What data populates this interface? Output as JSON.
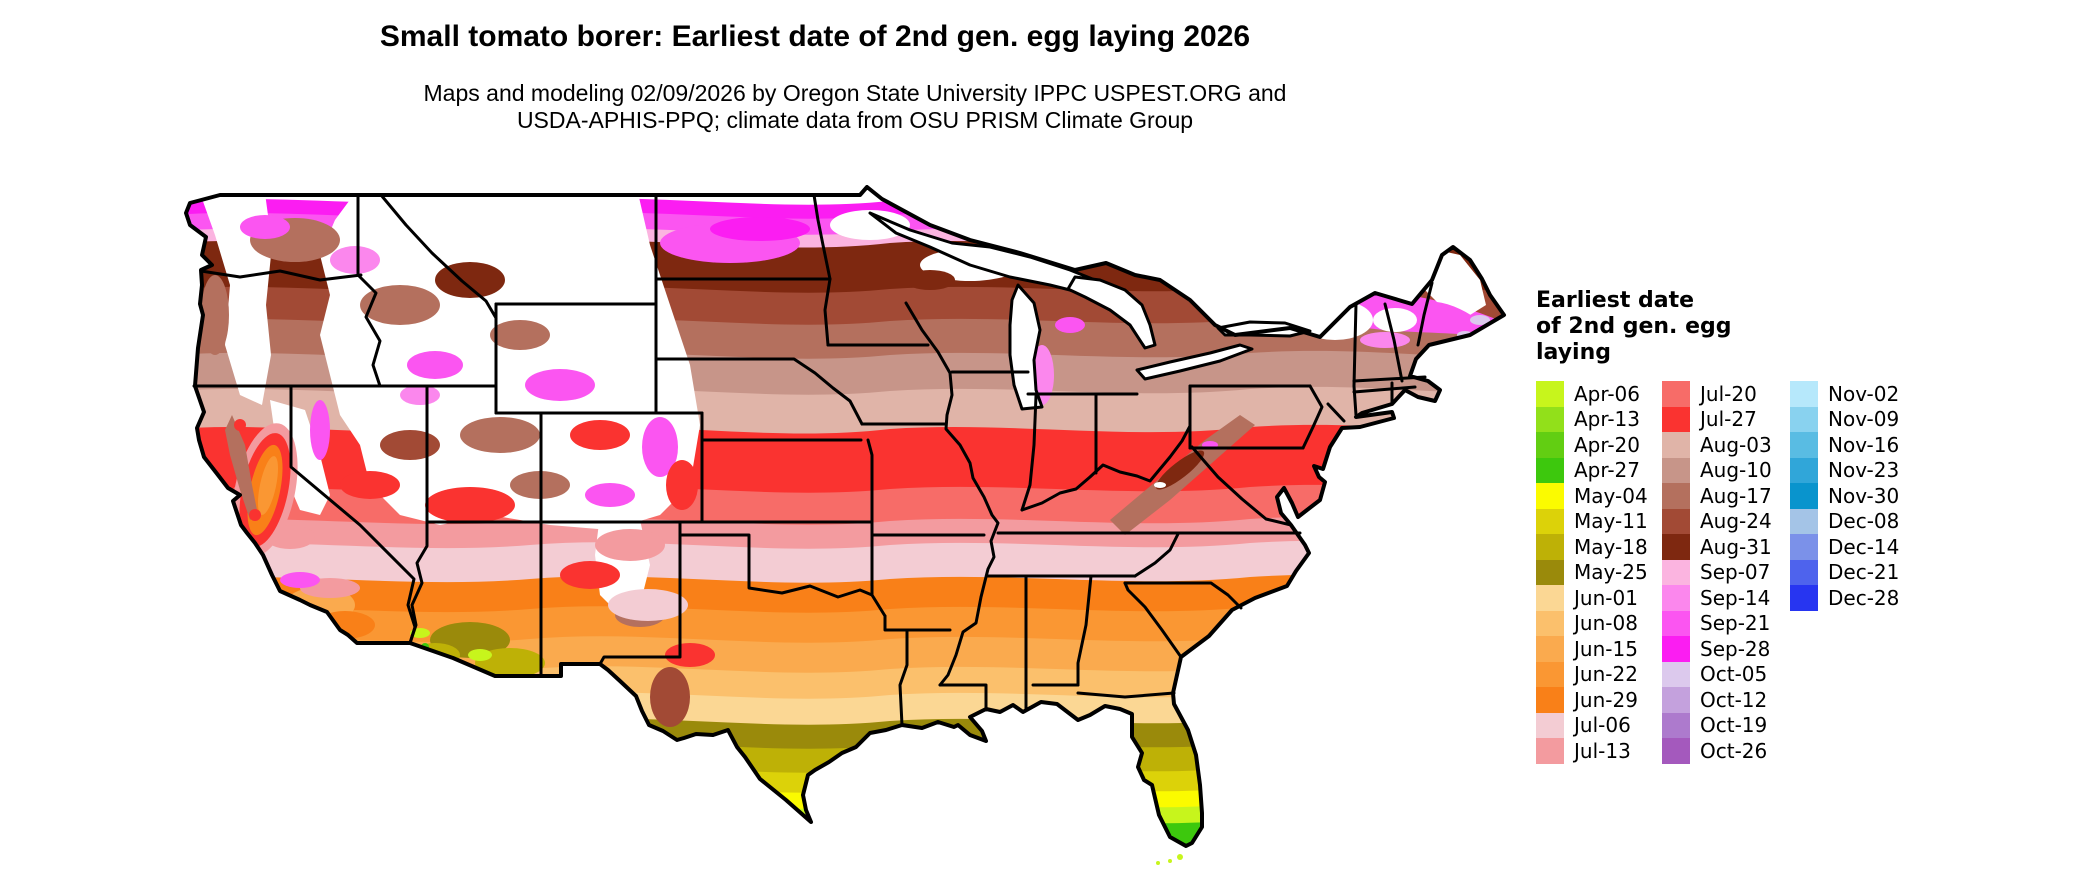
{
  "header": {
    "title": "Small tomato borer: Earliest date of 2nd gen. egg laying 2026",
    "subtitle_line1": "Maps and modeling 02/09/2026 by Oregon State University IPPC USPEST.ORG and",
    "subtitle_line2": "USDA-APHIS-PPQ; climate data from OSU PRISM Climate Group"
  },
  "map": {
    "region": "Continental United States",
    "no_data_color": "#FFFFFF",
    "border_color": "#000000"
  },
  "legend": {
    "title_lines": [
      "Earliest date",
      "of 2nd gen. egg",
      "laying"
    ],
    "columns": [
      {
        "entries": [
          {
            "label": "Apr-06",
            "color": "#C7F51C"
          },
          {
            "label": "Apr-13",
            "color": "#92E01A"
          },
          {
            "label": "Apr-20",
            "color": "#62CE12"
          },
          {
            "label": "Apr-27",
            "color": "#3DC80D"
          },
          {
            "label": "May-04",
            "color": "#FBFB00"
          },
          {
            "label": "May-11",
            "color": "#DCD209"
          },
          {
            "label": "May-18",
            "color": "#BEB106"
          },
          {
            "label": "May-25",
            "color": "#9A8A0B"
          },
          {
            "label": "Jun-01",
            "color": "#FBD794"
          },
          {
            "label": "Jun-08",
            "color": "#FBC06C"
          },
          {
            "label": "Jun-15",
            "color": "#FAAA4E"
          },
          {
            "label": "Jun-22",
            "color": "#FA9733"
          },
          {
            "label": "Jun-29",
            "color": "#F98018"
          },
          {
            "label": "Jul-06",
            "color": "#F3CCD3"
          },
          {
            "label": "Jul-13",
            "color": "#F39B9F"
          }
        ]
      },
      {
        "entries": [
          {
            "label": "Jul-20",
            "color": "#F76C68"
          },
          {
            "label": "Jul-27",
            "color": "#FA3330"
          },
          {
            "label": "Aug-03",
            "color": "#E0B4A8"
          },
          {
            "label": "Aug-10",
            "color": "#C79589"
          },
          {
            "label": "Aug-17",
            "color": "#B4705E"
          },
          {
            "label": "Aug-24",
            "color": "#A24A35"
          },
          {
            "label": "Aug-31",
            "color": "#7E2810"
          },
          {
            "label": "Sep-07",
            "color": "#FBB4E0"
          },
          {
            "label": "Sep-14",
            "color": "#FB87ED"
          },
          {
            "label": "Sep-21",
            "color": "#FB55F1"
          },
          {
            "label": "Sep-28",
            "color": "#FB1DF2"
          },
          {
            "label": "Oct-05",
            "color": "#DCC9ED"
          },
          {
            "label": "Oct-12",
            "color": "#C4A1DD"
          },
          {
            "label": "Oct-19",
            "color": "#AD7ACD"
          },
          {
            "label": "Oct-26",
            "color": "#A459BD"
          }
        ]
      },
      {
        "entries": [
          {
            "label": "Nov-02",
            "color": "#B6E8FB"
          },
          {
            "label": "Nov-09",
            "color": "#89D2EF"
          },
          {
            "label": "Nov-16",
            "color": "#59BCE3"
          },
          {
            "label": "Nov-23",
            "color": "#30A6D9"
          },
          {
            "label": "Nov-30",
            "color": "#0994CD"
          },
          {
            "label": "Dec-08",
            "color": "#A4C4E7"
          },
          {
            "label": "Dec-14",
            "color": "#7B91E9"
          },
          {
            "label": "Dec-21",
            "color": "#4E63ED"
          },
          {
            "label": "Dec-28",
            "color": "#2735F1"
          }
        ]
      }
    ]
  }
}
